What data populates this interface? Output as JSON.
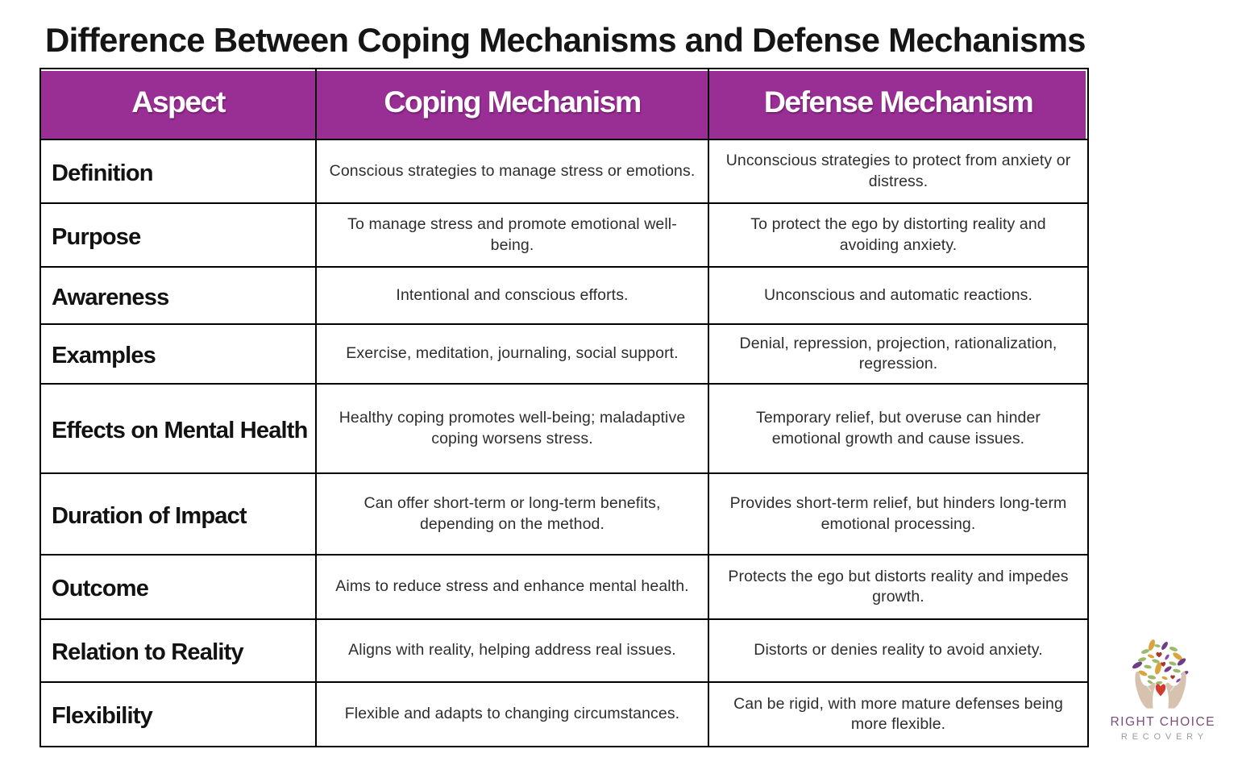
{
  "title": "Difference Between Coping Mechanisms and Defense Mechanisms",
  "table": {
    "columns": [
      "Aspect",
      "Coping Mechanism",
      "Defense Mechanism"
    ],
    "rows": [
      {
        "aspect": "Definition",
        "coping": "Conscious strategies to manage stress or emotions.",
        "defense": "Unconscious strategies to protect from anxiety or\ndistress."
      },
      {
        "aspect": "Purpose",
        "coping": "To manage stress and promote emotional well-\nbeing.",
        "defense": "To protect the ego by distorting reality and\navoiding anxiety."
      },
      {
        "aspect": "Awareness",
        "coping": "Intentional and conscious efforts.",
        "defense": "Unconscious and automatic reactions."
      },
      {
        "aspect": "Examples",
        "coping": "Exercise, meditation, journaling, social support.",
        "defense": "Denial, repression, projection, rationalization,\nregression."
      },
      {
        "aspect": "Effects on Mental Health",
        "coping": "Healthy coping promotes well-being; maladaptive\ncoping worsens stress.",
        "defense": "Temporary relief, but overuse can hinder\nemotional growth and cause issues."
      },
      {
        "aspect": "Duration of Impact",
        "coping": "Can offer short-term or long-term benefits,\ndepending on the method.",
        "defense": "Provides short-term relief, but hinders long-term\nemotional processing."
      },
      {
        "aspect": "Outcome",
        "coping": "Aims to reduce stress and enhance mental health.",
        "defense": "Protects the ego but distorts reality and impedes\ngrowth."
      },
      {
        "aspect": "Relation to Reality",
        "coping": "Aligns with reality, helping address real issues.",
        "defense": "Distorts or denies reality to avoid anxiety."
      },
      {
        "aspect": "Flexibility",
        "coping": "Flexible and adapts to changing circumstances.",
        "defense": "Can be rigid, with more mature defenses being\nmore flexible."
      }
    ]
  },
  "colors": {
    "accent": "#992E95",
    "border": "#000000",
    "logo_purple": "#7B4E7D",
    "logo_gray": "#9B9B9B",
    "logo_hand": "#D7C2B0",
    "logo_heart": "#D23A2E",
    "logo_leaf_green": "#9CB96E",
    "logo_leaf_gold": "#D9A43C",
    "logo_leaf_purple": "#6E3D85",
    "logo_leaf_plum": "#8E44AD",
    "logo_leaf_red": "#A8382F"
  },
  "logo": {
    "line1": "RIGHT CHOICE",
    "line2": "RECOVERY",
    "icon": "hands-holding-heart-with-leaves"
  }
}
